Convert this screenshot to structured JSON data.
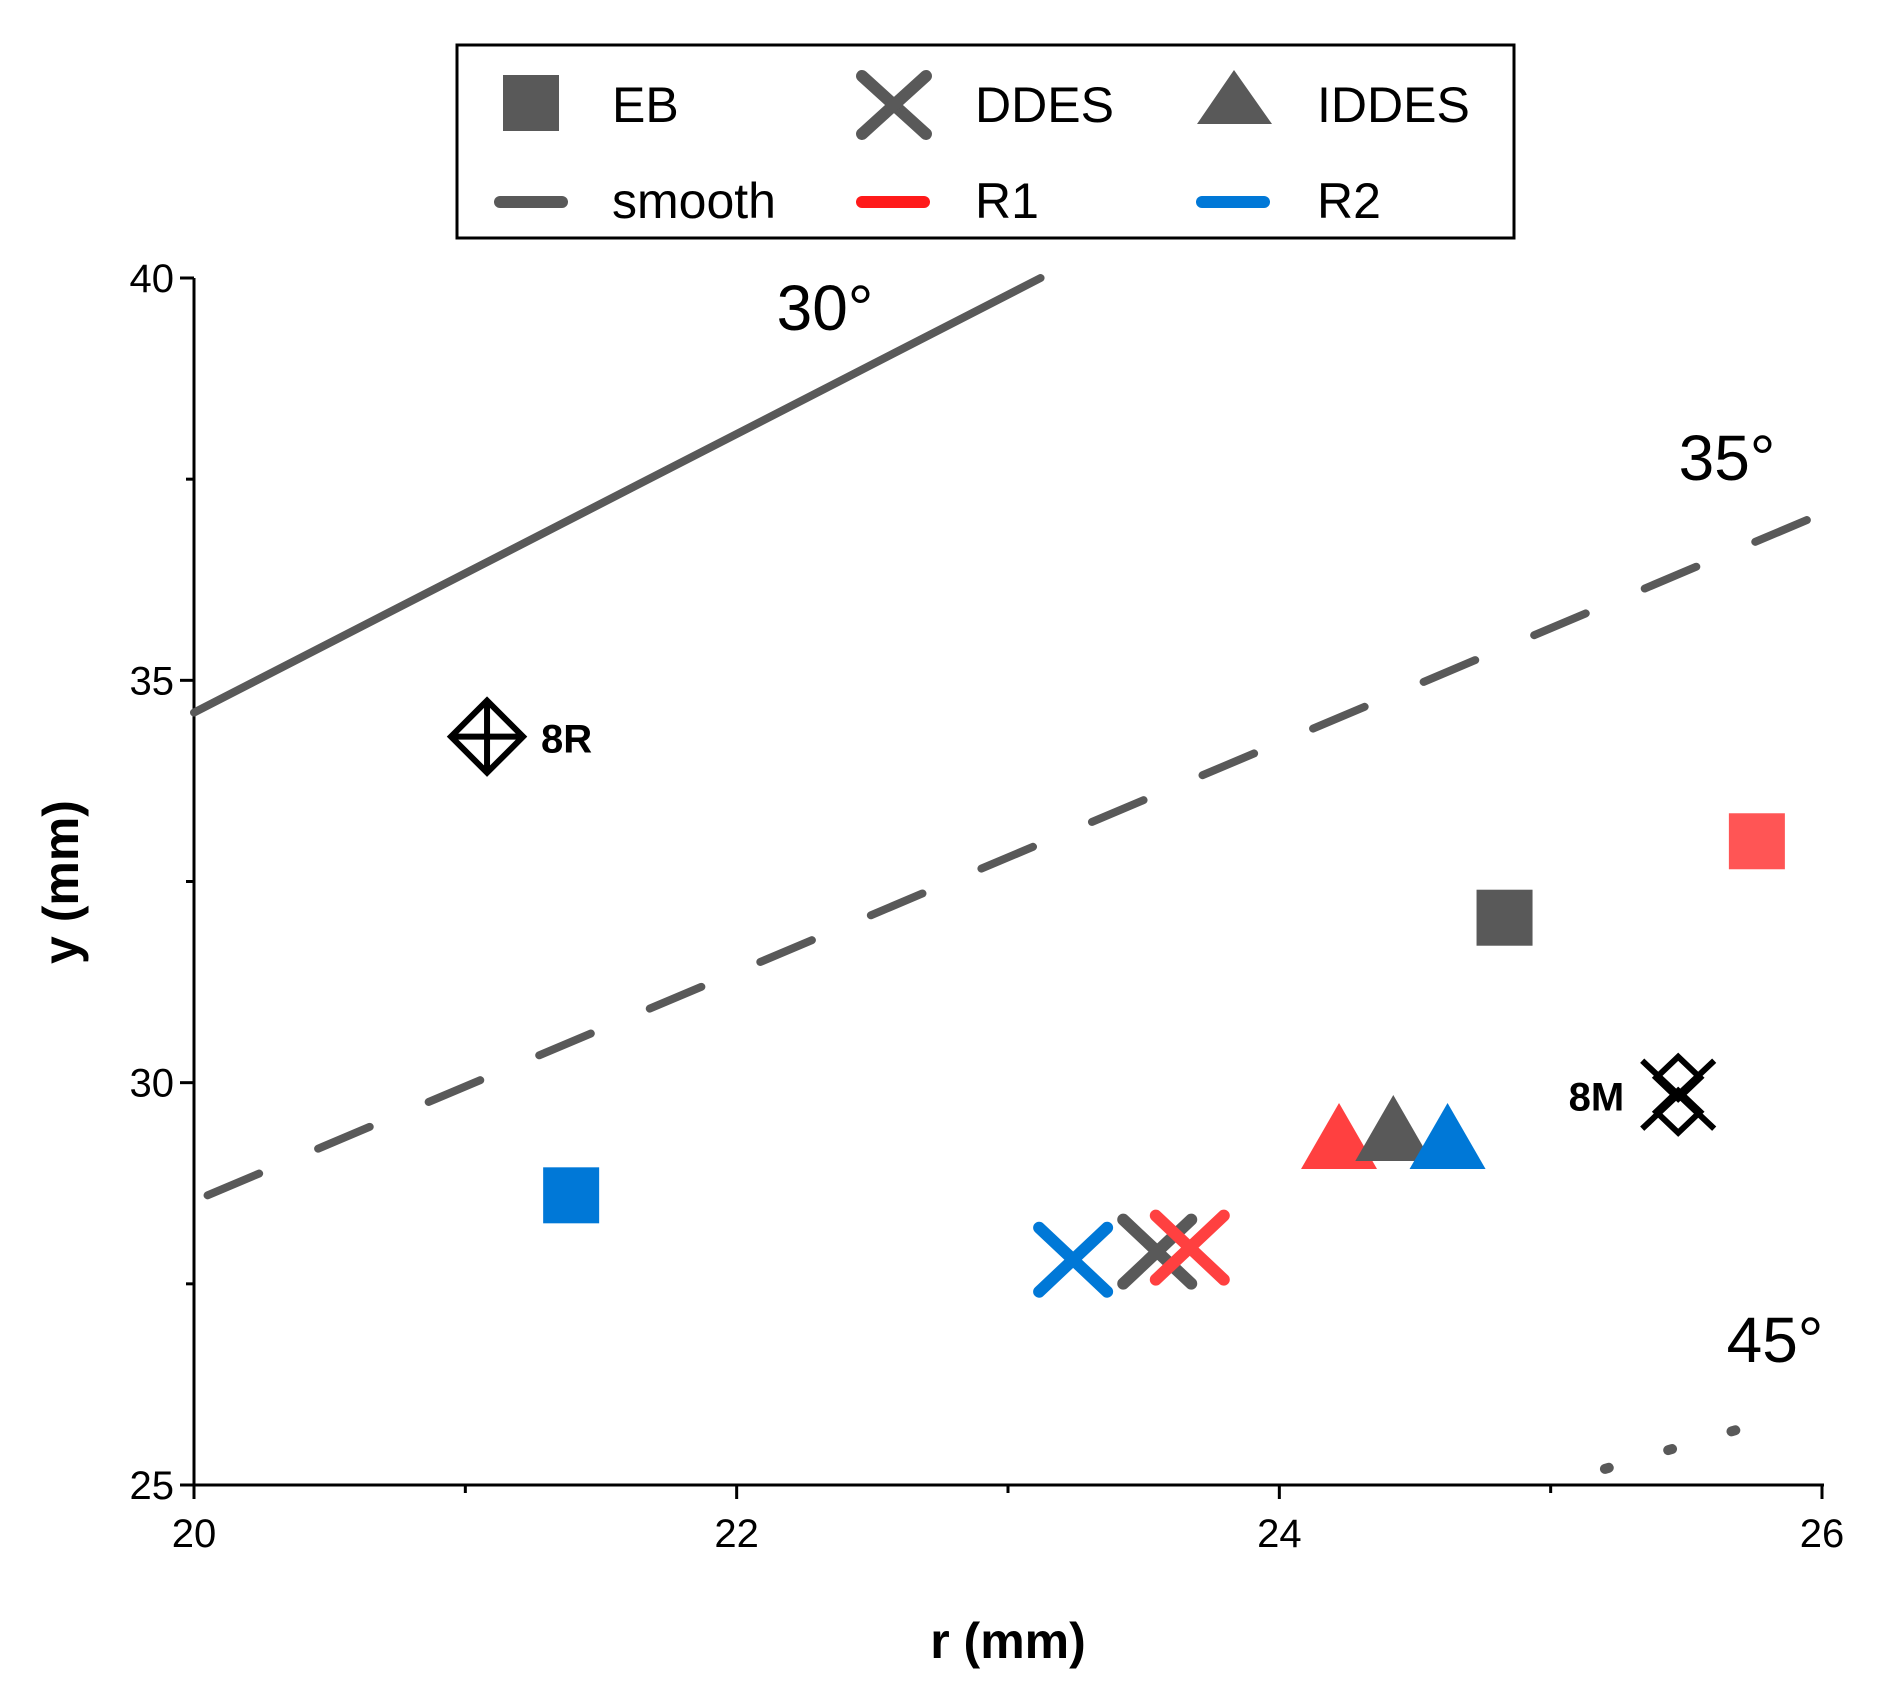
{
  "chart_data": {
    "type": "scatter",
    "xlabel": "r (mm)",
    "ylabel": "y (mm)",
    "xlim": [
      20,
      26
    ],
    "ylim": [
      25,
      40
    ],
    "xticks": [
      "20",
      "22",
      "24",
      "26"
    ],
    "yticks": [
      "25",
      "30",
      "35",
      "40"
    ],
    "grid": false,
    "legend_position": "top",
    "legend": {
      "EB": "EB",
      "DDES": "DDES",
      "IDDES": "IDDES",
      "smooth": "smooth",
      "R1": "R1",
      "R2": "R2"
    },
    "colors": {
      "smooth": "#595959",
      "R1": "#ff4040",
      "R2": "#0078d7"
    },
    "markers": {
      "EB": "square",
      "DDES": "x",
      "IDDES": "triangle"
    },
    "lines": [
      {
        "label": "30°",
        "style": "solid",
        "points": [
          [
            20,
            34.6
          ],
          [
            23.12,
            40
          ]
        ]
      },
      {
        "label": "35°",
        "style": "dashed",
        "points": [
          [
            20.05,
            28.6
          ],
          [
            25.95,
            37.0
          ]
        ]
      },
      {
        "label": "45°",
        "style": "dotted",
        "points": [
          [
            25.2,
            25.2
          ],
          [
            25.8,
            25.8
          ]
        ]
      }
    ],
    "series": [
      {
        "method": "EB",
        "case": "smooth",
        "x": 24.83,
        "y": 32.05
      },
      {
        "method": "EB",
        "case": "R1",
        "x": 25.76,
        "y": 33.0
      },
      {
        "method": "EB",
        "case": "R2",
        "x": 21.39,
        "y": 28.6
      },
      {
        "method": "DDES",
        "case": "smooth",
        "x": 23.55,
        "y": 27.9
      },
      {
        "method": "DDES",
        "case": "R1",
        "x": 23.67,
        "y": 27.95
      },
      {
        "method": "DDES",
        "case": "R2",
        "x": 23.24,
        "y": 27.8
      },
      {
        "method": "IDDES",
        "case": "R1",
        "x": 24.22,
        "y": 29.3
      },
      {
        "method": "IDDES",
        "case": "smooth",
        "x": 24.42,
        "y": 29.4
      },
      {
        "method": "IDDES",
        "case": "R2",
        "x": 24.62,
        "y": 29.3
      }
    ],
    "annotations": [
      {
        "text": "8R",
        "x": 21.08,
        "y": 34.3,
        "marker": "diamond-plus"
      },
      {
        "text": "8M",
        "x": 25.47,
        "y": 29.85,
        "marker": "double-diamond-x"
      }
    ]
  }
}
